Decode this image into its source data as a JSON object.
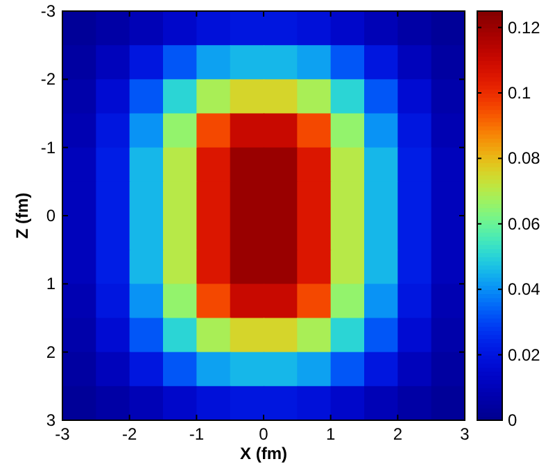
{
  "chart_data": {
    "type": "heatmap",
    "xlabel": "X (fm)",
    "ylabel": "Z (fm)",
    "x": [
      -2.75,
      -2.25,
      -1.75,
      -1.25,
      -0.75,
      -0.25,
      0.25,
      0.75,
      1.25,
      1.75,
      2.25,
      2.75
    ],
    "y": [
      -2.75,
      -2.25,
      -1.75,
      -1.25,
      -0.75,
      -0.25,
      0.25,
      0.75,
      1.25,
      1.75,
      2.25,
      2.75
    ],
    "xlim": [
      -3,
      3
    ],
    "xticks": [
      -3,
      -2,
      -1,
      0,
      1,
      2,
      3
    ],
    "ylim": [
      3,
      -3
    ],
    "yticks": [
      -3,
      -2,
      -1,
      0,
      1,
      2,
      3
    ],
    "clim": [
      0,
      0.125
    ],
    "cticks": [
      0,
      0.02,
      0.04,
      0.06,
      0.08,
      0.1,
      0.12
    ],
    "cells": [
      [
        0.002,
        0.005,
        0.009,
        0.014,
        0.018,
        0.02,
        0.02,
        0.018,
        0.014,
        0.009,
        0.005,
        0.002
      ],
      [
        0.004,
        0.01,
        0.02,
        0.032,
        0.042,
        0.045,
        0.045,
        0.042,
        0.032,
        0.02,
        0.01,
        0.004
      ],
      [
        0.006,
        0.016,
        0.032,
        0.05,
        0.068,
        0.075,
        0.075,
        0.068,
        0.05,
        0.032,
        0.016,
        0.006
      ],
      [
        0.008,
        0.02,
        0.04,
        0.065,
        0.095,
        0.11,
        0.11,
        0.095,
        0.065,
        0.04,
        0.02,
        0.008
      ],
      [
        0.01,
        0.022,
        0.045,
        0.07,
        0.105,
        0.12,
        0.12,
        0.105,
        0.07,
        0.045,
        0.022,
        0.01
      ],
      [
        0.01,
        0.022,
        0.045,
        0.07,
        0.105,
        0.12,
        0.12,
        0.105,
        0.07,
        0.045,
        0.022,
        0.01
      ],
      [
        0.01,
        0.022,
        0.045,
        0.07,
        0.105,
        0.12,
        0.12,
        0.105,
        0.07,
        0.045,
        0.022,
        0.01
      ],
      [
        0.01,
        0.022,
        0.045,
        0.07,
        0.105,
        0.12,
        0.12,
        0.105,
        0.07,
        0.045,
        0.022,
        0.01
      ],
      [
        0.008,
        0.02,
        0.04,
        0.065,
        0.095,
        0.11,
        0.11,
        0.095,
        0.065,
        0.04,
        0.02,
        0.008
      ],
      [
        0.006,
        0.016,
        0.032,
        0.05,
        0.068,
        0.075,
        0.075,
        0.068,
        0.05,
        0.032,
        0.016,
        0.006
      ],
      [
        0.004,
        0.01,
        0.02,
        0.032,
        0.042,
        0.045,
        0.045,
        0.042,
        0.032,
        0.02,
        0.01,
        0.004
      ],
      [
        0.002,
        0.005,
        0.009,
        0.014,
        0.018,
        0.02,
        0.02,
        0.018,
        0.014,
        0.009,
        0.005,
        0.002
      ]
    ]
  }
}
